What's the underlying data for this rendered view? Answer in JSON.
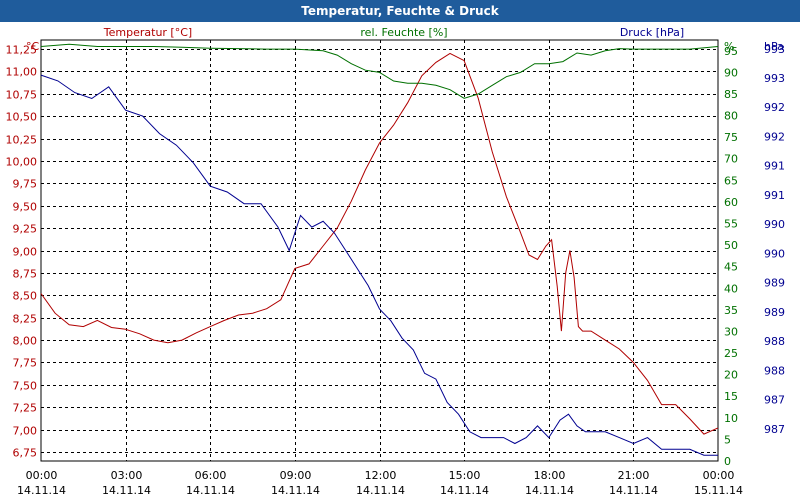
{
  "window": {
    "title": "Temperatur, Feuchte & Druck"
  },
  "colors": {
    "temp": "#b00000",
    "hum": "#007000",
    "pres": "#000090",
    "grid": "#000000"
  },
  "chart_data": {
    "type": "line",
    "title": "Temperatur, Feuchte & Druck",
    "x_range": [
      0,
      24
    ],
    "x_ticks": [
      0,
      3,
      6,
      9,
      12,
      15,
      18,
      21,
      24
    ],
    "x_tick_labels": [
      "00:00",
      "03:00",
      "06:00",
      "09:00",
      "12:00",
      "15:00",
      "18:00",
      "21:00",
      "00:00"
    ],
    "x_date_labels": [
      "14.11.14",
      "14.11.14",
      "14.11.14",
      "14.11.14",
      "14.11.14",
      "14.11.14",
      "14.11.14",
      "14.11.14",
      "15.11.14"
    ],
    "axes": {
      "temp": {
        "unit": "°C",
        "title": "Temperatur [°C]",
        "range": [
          6.65,
          11.35
        ],
        "ticks": [
          "6,75",
          "7,00",
          "7,25",
          "7,50",
          "7,75",
          "8,00",
          "8,25",
          "8,50",
          "8,75",
          "9,00",
          "9,25",
          "9,50",
          "9,75",
          "10,00",
          "10,25",
          "10,50",
          "10,75",
          "11,00",
          "11,25"
        ]
      },
      "hum": {
        "unit": "%",
        "title": "rel. Feuchte [%]",
        "range": [
          0,
          97.5
        ],
        "ticks": [
          "0",
          "5",
          "10",
          "15",
          "20",
          "25",
          "30",
          "35",
          "40",
          "45",
          "50",
          "55",
          "60",
          "65",
          "70",
          "75",
          "80",
          "85",
          "90",
          "95"
        ]
      },
      "pres": {
        "unit": "hPa",
        "title": "Druck [hPa]",
        "range": [
          986.7,
          993.9
        ],
        "ticks": [
          "987",
          "987",
          "988",
          "988",
          "989",
          "989",
          "990",
          "990",
          "991",
          "991",
          "992",
          "992",
          "993",
          "993"
        ]
      }
    },
    "series": [
      {
        "name": "Temperatur",
        "axis": "temp",
        "x": [
          0,
          0.5,
          1,
          1.5,
          2,
          2.5,
          3,
          3.5,
          4,
          4.5,
          5,
          5.5,
          6,
          6.5,
          7,
          7.5,
          8,
          8.5,
          9,
          9.5,
          10,
          10.5,
          11,
          11.5,
          12,
          12.5,
          13,
          13.5,
          14,
          14.5,
          15,
          15.5,
          16,
          16.5,
          17,
          17.3,
          17.6,
          17.9,
          18.1,
          18.3,
          18.45,
          18.6,
          18.75,
          18.9,
          19.05,
          19.2,
          19.35,
          19.5,
          20,
          20.5,
          21,
          21.5,
          22,
          22.5,
          23,
          23.5,
          24
        ],
        "y": [
          8.52,
          8.3,
          8.17,
          8.15,
          8.22,
          8.14,
          8.12,
          8.07,
          8.0,
          7.97,
          8.0,
          8.08,
          8.15,
          8.22,
          8.28,
          8.3,
          8.35,
          8.45,
          8.8,
          8.85,
          9.05,
          9.25,
          9.55,
          9.9,
          10.2,
          10.4,
          10.65,
          10.95,
          11.1,
          11.2,
          11.12,
          10.7,
          10.1,
          9.6,
          9.2,
          8.95,
          8.9,
          9.05,
          9.12,
          8.6,
          8.1,
          8.75,
          9.0,
          8.7,
          8.15,
          8.1,
          8.1,
          8.1,
          8.0,
          7.9,
          7.75,
          7.55,
          7.28,
          7.28,
          7.12,
          6.95,
          7.02
        ]
      },
      {
        "name": "rel. Feuchte",
        "axis": "hum",
        "x": [
          0,
          1,
          2,
          3,
          4,
          5,
          6,
          7,
          8,
          9,
          10,
          10.5,
          11,
          11.5,
          12,
          12.5,
          13,
          13.5,
          14,
          14.5,
          15,
          15.5,
          16,
          16.5,
          17,
          17.5,
          18,
          18.5,
          19,
          19.5,
          20,
          20.5,
          21,
          22,
          23,
          24
        ],
        "y": [
          96,
          96.5,
          96,
          96,
          96,
          95.8,
          95.6,
          95.5,
          95.4,
          95.4,
          95,
          94,
          92,
          90.5,
          90,
          88,
          87.5,
          87.5,
          87,
          86,
          84,
          85,
          87,
          89,
          90,
          92,
          92,
          92.5,
          94.5,
          94,
          95,
          95.5,
          95.4,
          95.4,
          95.4,
          96
        ]
      },
      {
        "name": "Druck",
        "axis": "pres",
        "x": [
          0,
          0.6,
          1.2,
          1.8,
          2.4,
          3,
          3.6,
          4.2,
          4.8,
          5.4,
          6,
          6.6,
          7.2,
          7.8,
          8.4,
          8.8,
          9.2,
          9.6,
          10,
          10.4,
          10.8,
          11.2,
          11.6,
          12,
          12.4,
          12.8,
          13.2,
          13.6,
          14,
          14.4,
          14.8,
          15.2,
          15.6,
          16,
          16.4,
          16.8,
          17.2,
          17.6,
          18,
          18.4,
          18.7,
          19,
          19.3,
          19.6,
          20,
          20.5,
          21,
          21.5,
          22,
          22.5,
          23,
          23.5,
          24
        ],
        "y": [
          993.3,
          993.2,
          993.0,
          992.9,
          993.1,
          992.7,
          992.6,
          992.3,
          992.1,
          991.8,
          991.4,
          991.3,
          991.1,
          991.1,
          990.7,
          990.3,
          990.9,
          990.7,
          990.8,
          990.6,
          990.3,
          990.0,
          989.7,
          989.3,
          989.1,
          988.8,
          988.6,
          988.2,
          988.1,
          987.7,
          987.5,
          987.2,
          987.1,
          987.1,
          987.1,
          987.0,
          987.1,
          987.3,
          987.1,
          987.4,
          987.5,
          987.3,
          987.2,
          987.2,
          987.2,
          987.1,
          987.0,
          987.1,
          986.9,
          986.9,
          986.9,
          986.8,
          986.8
        ]
      }
    ]
  }
}
